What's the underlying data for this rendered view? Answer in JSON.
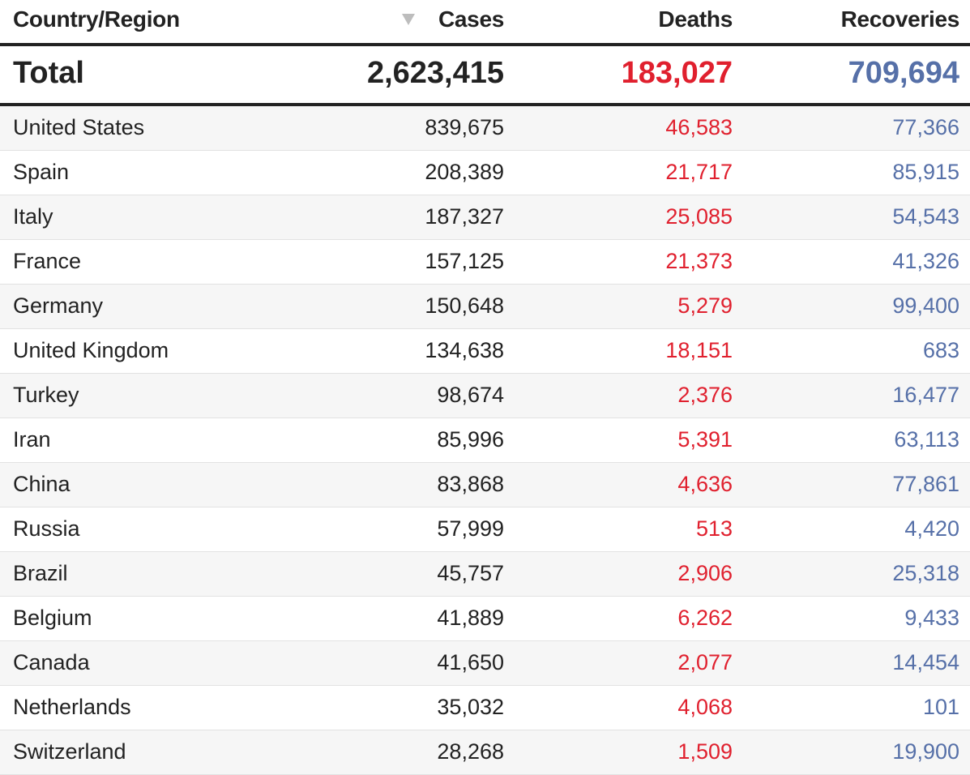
{
  "table": {
    "headers": {
      "country": "Country/Region",
      "cases": "Cases",
      "deaths": "Deaths",
      "recoveries": "Recoveries"
    },
    "sort_icon": "sort-descending-icon",
    "total": {
      "label": "Total",
      "cases": "2,623,415",
      "deaths": "183,027",
      "recoveries": "709,694"
    },
    "rows": [
      {
        "country": "United States",
        "cases": "839,675",
        "deaths": "46,583",
        "recoveries": "77,366"
      },
      {
        "country": "Spain",
        "cases": "208,389",
        "deaths": "21,717",
        "recoveries": "85,915"
      },
      {
        "country": "Italy",
        "cases": "187,327",
        "deaths": "25,085",
        "recoveries": "54,543"
      },
      {
        "country": "France",
        "cases": "157,125",
        "deaths": "21,373",
        "recoveries": "41,326"
      },
      {
        "country": "Germany",
        "cases": "150,648",
        "deaths": "5,279",
        "recoveries": "99,400"
      },
      {
        "country": "United Kingdom",
        "cases": "134,638",
        "deaths": "18,151",
        "recoveries": "683"
      },
      {
        "country": "Turkey",
        "cases": "98,674",
        "deaths": "2,376",
        "recoveries": "16,477"
      },
      {
        "country": "Iran",
        "cases": "85,996",
        "deaths": "5,391",
        "recoveries": "63,113"
      },
      {
        "country": "China",
        "cases": "83,868",
        "deaths": "4,636",
        "recoveries": "77,861"
      },
      {
        "country": "Russia",
        "cases": "57,999",
        "deaths": "513",
        "recoveries": "4,420"
      },
      {
        "country": "Brazil",
        "cases": "45,757",
        "deaths": "2,906",
        "recoveries": "25,318"
      },
      {
        "country": "Belgium",
        "cases": "41,889",
        "deaths": "6,262",
        "recoveries": "9,433"
      },
      {
        "country": "Canada",
        "cases": "41,650",
        "deaths": "2,077",
        "recoveries": "14,454"
      },
      {
        "country": "Netherlands",
        "cases": "35,032",
        "deaths": "4,068",
        "recoveries": "101"
      },
      {
        "country": "Switzerland",
        "cases": "28,268",
        "deaths": "1,509",
        "recoveries": "19,900"
      }
    ]
  },
  "colors": {
    "text": "#222222",
    "deaths": "#e0202e",
    "recoveries": "#5670a8",
    "row_alt": "#f6f6f6",
    "divider": "#e2e2e2"
  }
}
